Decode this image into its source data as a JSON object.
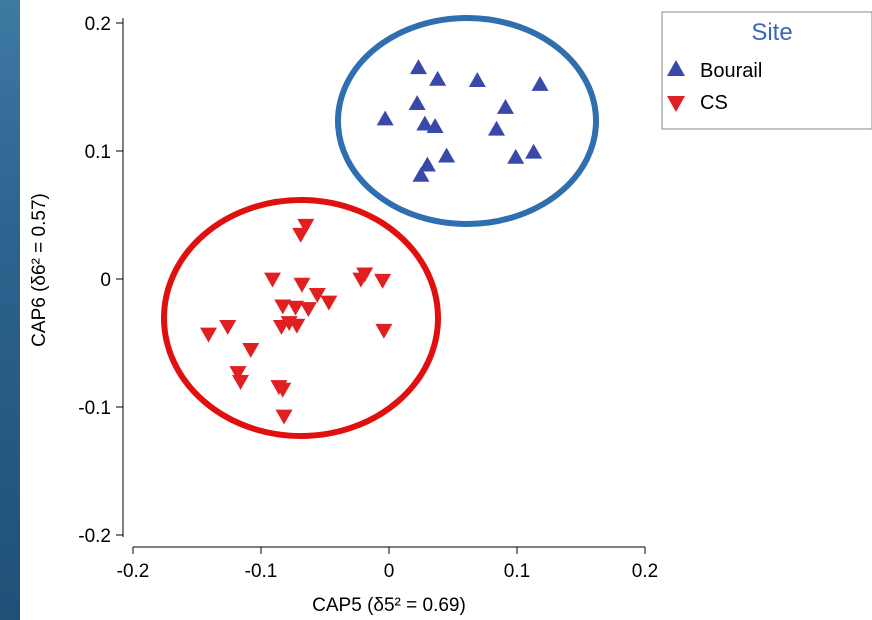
{
  "chart_data": {
    "type": "scatter",
    "xlabel": "CAP5 (δ5² = 0.69)",
    "ylabel": "CAP6 (δ6² = 0.57)",
    "xlim": [
      -0.2,
      0.2
    ],
    "ylim": [
      -0.2,
      0.2
    ],
    "xticks": [
      "-0.2",
      "-0.1",
      "0",
      "0.1",
      "0.2"
    ],
    "yticks": [
      "-0.2",
      "-0.1",
      "0",
      "0.1",
      "0.2"
    ],
    "legend_title": "Site",
    "legend_position": "top-right",
    "grid": false,
    "series": [
      {
        "name": "Bourail",
        "marker": "triangle-up",
        "color": "#3949a8",
        "points": [
          [
            0.023,
            0.165
          ],
          [
            0.038,
            0.156
          ],
          [
            0.069,
            0.155
          ],
          [
            0.118,
            0.152
          ],
          [
            0.022,
            0.137
          ],
          [
            0.091,
            0.134
          ],
          [
            -0.003,
            0.125
          ],
          [
            0.028,
            0.121
          ],
          [
            0.036,
            0.119
          ],
          [
            0.084,
            0.117
          ],
          [
            0.045,
            0.096
          ],
          [
            0.03,
            0.089
          ],
          [
            0.025,
            0.081
          ],
          [
            0.099,
            0.095
          ],
          [
            0.113,
            0.099
          ]
        ]
      },
      {
        "name": "CS",
        "marker": "triangle-down",
        "color": "#e02020",
        "points": [
          [
            -0.065,
            0.042
          ],
          [
            -0.069,
            0.035
          ],
          [
            -0.091,
            0.0
          ],
          [
            -0.068,
            -0.004
          ],
          [
            -0.019,
            0.004
          ],
          [
            -0.022,
            0.0
          ],
          [
            -0.005,
            -0.001
          ],
          [
            -0.056,
            -0.012
          ],
          [
            -0.047,
            -0.018
          ],
          [
            -0.083,
            -0.021
          ],
          [
            -0.073,
            -0.022
          ],
          [
            -0.063,
            -0.023
          ],
          [
            -0.078,
            -0.034
          ],
          [
            -0.072,
            -0.036
          ],
          [
            -0.084,
            -0.037
          ],
          [
            -0.004,
            -0.04
          ],
          [
            -0.126,
            -0.037
          ],
          [
            -0.141,
            -0.043
          ],
          [
            -0.108,
            -0.055
          ],
          [
            -0.118,
            -0.073
          ],
          [
            -0.116,
            -0.08
          ],
          [
            -0.086,
            -0.084
          ],
          [
            -0.083,
            -0.086
          ],
          [
            -0.082,
            -0.107
          ]
        ]
      }
    ]
  }
}
